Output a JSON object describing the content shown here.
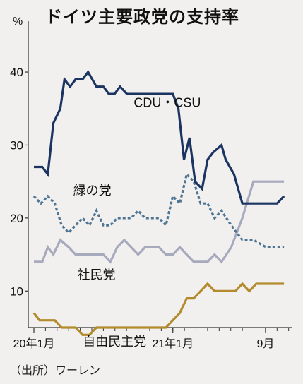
{
  "title": "ドイツ主要政党の支持率",
  "unit": "%",
  "source": "（出所）ワーレン",
  "chart_data": {
    "type": "line",
    "title": "ドイツ主要政党の支持率",
    "ylabel": "%",
    "ylim": [
      5,
      46
    ],
    "yticks": [
      10,
      20,
      30,
      40
    ],
    "x_range": [
      2020.0,
      2021.84
    ],
    "xticks": [
      {
        "label": "20年1月",
        "x": 2020.0
      },
      {
        "label": "21年1月",
        "x": 2021.0
      },
      {
        "label": "9月",
        "x": 2021.667
      }
    ],
    "grid": false,
    "series": [
      {
        "name": "CDU・CSU",
        "color": "#1b3461",
        "style": "solid",
        "label_at": [
          2020.96,
          35.2
        ],
        "points": [
          [
            2020.0,
            27
          ],
          [
            2020.06,
            27
          ],
          [
            2020.1,
            26
          ],
          [
            2020.14,
            33
          ],
          [
            2020.19,
            35
          ],
          [
            2020.22,
            39
          ],
          [
            2020.26,
            38
          ],
          [
            2020.3,
            39
          ],
          [
            2020.35,
            39
          ],
          [
            2020.39,
            40
          ],
          [
            2020.45,
            38
          ],
          [
            2020.5,
            38
          ],
          [
            2020.54,
            37
          ],
          [
            2020.58,
            37
          ],
          [
            2020.62,
            38
          ],
          [
            2020.67,
            37
          ],
          [
            2020.75,
            37
          ],
          [
            2020.83,
            37
          ],
          [
            2020.92,
            37
          ],
          [
            2021.0,
            37
          ],
          [
            2021.04,
            35
          ],
          [
            2021.08,
            28
          ],
          [
            2021.12,
            31
          ],
          [
            2021.16,
            25
          ],
          [
            2021.21,
            24
          ],
          [
            2021.25,
            28
          ],
          [
            2021.29,
            29
          ],
          [
            2021.35,
            30
          ],
          [
            2021.38,
            28
          ],
          [
            2021.44,
            26
          ],
          [
            2021.5,
            22
          ],
          [
            2021.58,
            22
          ],
          [
            2021.67,
            22
          ],
          [
            2021.75,
            22
          ],
          [
            2021.8,
            23
          ]
        ]
      },
      {
        "name": "緑の党",
        "color": "#4e7594",
        "style": "dashed",
        "label_at": [
          2020.42,
          23.2
        ],
        "points": [
          [
            2020.0,
            23
          ],
          [
            2020.05,
            22
          ],
          [
            2020.1,
            23
          ],
          [
            2020.15,
            22
          ],
          [
            2020.2,
            19
          ],
          [
            2020.25,
            18
          ],
          [
            2020.3,
            19
          ],
          [
            2020.35,
            20
          ],
          [
            2020.4,
            19
          ],
          [
            2020.45,
            21
          ],
          [
            2020.5,
            19
          ],
          [
            2020.55,
            19
          ],
          [
            2020.6,
            20
          ],
          [
            2020.65,
            20
          ],
          [
            2020.7,
            20
          ],
          [
            2020.75,
            21
          ],
          [
            2020.8,
            20
          ],
          [
            2020.85,
            20
          ],
          [
            2020.9,
            20
          ],
          [
            2020.95,
            19
          ],
          [
            2021.0,
            23
          ],
          [
            2021.05,
            22
          ],
          [
            2021.1,
            26
          ],
          [
            2021.15,
            25
          ],
          [
            2021.2,
            22
          ],
          [
            2021.25,
            22
          ],
          [
            2021.3,
            20
          ],
          [
            2021.35,
            21
          ],
          [
            2021.42,
            19
          ],
          [
            2021.5,
            17
          ],
          [
            2021.58,
            17
          ],
          [
            2021.67,
            16
          ],
          [
            2021.75,
            16
          ],
          [
            2021.8,
            16
          ]
        ]
      },
      {
        "name": "社民党",
        "color": "#a7a9bc",
        "style": "solid",
        "label_at": [
          2020.45,
          11.6
        ],
        "points": [
          [
            2020.0,
            14
          ],
          [
            2020.06,
            14
          ],
          [
            2020.1,
            16
          ],
          [
            2020.14,
            15
          ],
          [
            2020.19,
            17
          ],
          [
            2020.25,
            16
          ],
          [
            2020.3,
            15
          ],
          [
            2020.4,
            15
          ],
          [
            2020.5,
            15
          ],
          [
            2020.55,
            14
          ],
          [
            2020.6,
            16
          ],
          [
            2020.65,
            17
          ],
          [
            2020.7,
            16
          ],
          [
            2020.75,
            15
          ],
          [
            2020.8,
            16
          ],
          [
            2020.9,
            16
          ],
          [
            2020.95,
            15
          ],
          [
            2021.0,
            15
          ],
          [
            2021.05,
            16
          ],
          [
            2021.1,
            15
          ],
          [
            2021.15,
            14
          ],
          [
            2021.25,
            14
          ],
          [
            2021.3,
            15
          ],
          [
            2021.35,
            14
          ],
          [
            2021.42,
            16
          ],
          [
            2021.5,
            20
          ],
          [
            2021.58,
            25
          ],
          [
            2021.67,
            25
          ],
          [
            2021.75,
            25
          ],
          [
            2021.8,
            25
          ]
        ]
      },
      {
        "name": "自由民主党",
        "color": "#b38b2d",
        "style": "solid",
        "label_at": [
          2020.58,
          2.5
        ],
        "points": [
          [
            2020.0,
            7
          ],
          [
            2020.04,
            6
          ],
          [
            2020.1,
            6
          ],
          [
            2020.15,
            6
          ],
          [
            2020.2,
            5
          ],
          [
            2020.3,
            5
          ],
          [
            2020.35,
            4
          ],
          [
            2020.4,
            4
          ],
          [
            2020.45,
            5
          ],
          [
            2020.55,
            5
          ],
          [
            2020.65,
            5
          ],
          [
            2020.75,
            5
          ],
          [
            2020.85,
            5
          ],
          [
            2020.95,
            5
          ],
          [
            2021.0,
            6
          ],
          [
            2021.05,
            7
          ],
          [
            2021.1,
            9
          ],
          [
            2021.15,
            9
          ],
          [
            2021.2,
            10
          ],
          [
            2021.25,
            11
          ],
          [
            2021.3,
            10
          ],
          [
            2021.38,
            10
          ],
          [
            2021.45,
            10
          ],
          [
            2021.5,
            11
          ],
          [
            2021.55,
            10
          ],
          [
            2021.6,
            11
          ],
          [
            2021.67,
            11
          ],
          [
            2021.75,
            11
          ],
          [
            2021.8,
            11
          ]
        ]
      }
    ]
  }
}
